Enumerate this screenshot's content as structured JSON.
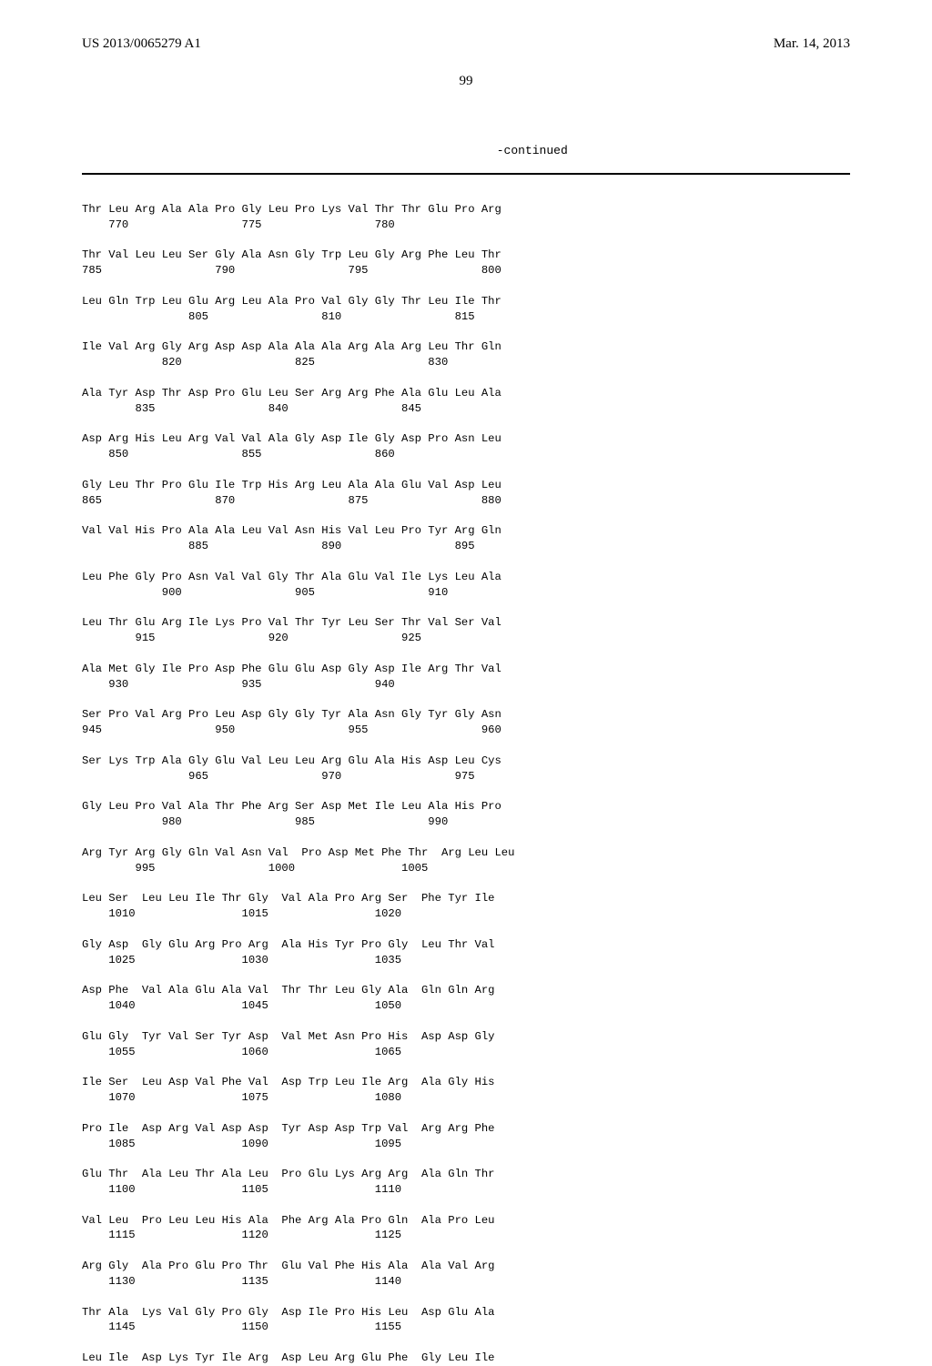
{
  "header": {
    "pub_number": "US 2013/0065279 A1",
    "pub_date": "Mar. 14, 2013"
  },
  "page_number": "99",
  "continued_label": "-continued",
  "sequence_text": "Thr Leu Arg Ala Ala Pro Gly Leu Pro Lys Val Thr Thr Glu Pro Arg\n    770                 775                 780\n\nThr Val Leu Leu Ser Gly Ala Asn Gly Trp Leu Gly Arg Phe Leu Thr\n785                 790                 795                 800\n\nLeu Gln Trp Leu Glu Arg Leu Ala Pro Val Gly Gly Thr Leu Ile Thr\n                805                 810                 815\n\nIle Val Arg Gly Arg Asp Asp Ala Ala Ala Arg Ala Arg Leu Thr Gln\n            820                 825                 830\n\nAla Tyr Asp Thr Asp Pro Glu Leu Ser Arg Arg Phe Ala Glu Leu Ala\n        835                 840                 845\n\nAsp Arg His Leu Arg Val Val Ala Gly Asp Ile Gly Asp Pro Asn Leu\n    850                 855                 860\n\nGly Leu Thr Pro Glu Ile Trp His Arg Leu Ala Ala Glu Val Asp Leu\n865                 870                 875                 880\n\nVal Val His Pro Ala Ala Leu Val Asn His Val Leu Pro Tyr Arg Gln\n                885                 890                 895\n\nLeu Phe Gly Pro Asn Val Val Gly Thr Ala Glu Val Ile Lys Leu Ala\n            900                 905                 910\n\nLeu Thr Glu Arg Ile Lys Pro Val Thr Tyr Leu Ser Thr Val Ser Val\n        915                 920                 925\n\nAla Met Gly Ile Pro Asp Phe Glu Glu Asp Gly Asp Ile Arg Thr Val\n    930                 935                 940\n\nSer Pro Val Arg Pro Leu Asp Gly Gly Tyr Ala Asn Gly Tyr Gly Asn\n945                 950                 955                 960\n\nSer Lys Trp Ala Gly Glu Val Leu Leu Arg Glu Ala His Asp Leu Cys\n                965                 970                 975\n\nGly Leu Pro Val Ala Thr Phe Arg Ser Asp Met Ile Leu Ala His Pro\n            980                 985                 990\n\nArg Tyr Arg Gly Gln Val Asn Val  Pro Asp Met Phe Thr  Arg Leu Leu\n        995                 1000                1005\n\nLeu Ser  Leu Leu Ile Thr Gly  Val Ala Pro Arg Ser  Phe Tyr Ile\n    1010                1015                1020\n\nGly Asp  Gly Glu Arg Pro Arg  Ala His Tyr Pro Gly  Leu Thr Val\n    1025                1030                1035\n\nAsp Phe  Val Ala Glu Ala Val  Thr Thr Leu Gly Ala  Gln Gln Arg\n    1040                1045                1050\n\nGlu Gly  Tyr Val Ser Tyr Asp  Val Met Asn Pro His  Asp Asp Gly\n    1055                1060                1065\n\nIle Ser  Leu Asp Val Phe Val  Asp Trp Leu Ile Arg  Ala Gly His\n    1070                1075                1080\n\nPro Ile  Asp Arg Val Asp Asp  Tyr Asp Asp Trp Val  Arg Arg Phe\n    1085                1090                1095\n\nGlu Thr  Ala Leu Thr Ala Leu  Pro Glu Lys Arg Arg  Ala Gln Thr\n    1100                1105                1110\n\nVal Leu  Pro Leu Leu His Ala  Phe Arg Ala Pro Gln  Ala Pro Leu\n    1115                1120                1125\n\nArg Gly  Ala Pro Glu Pro Thr  Glu Val Phe His Ala  Ala Val Arg\n    1130                1135                1140\n\nThr Ala  Lys Val Gly Pro Gly  Asp Ile Pro His Leu  Asp Glu Ala\n    1145                1150                1155\n\nLeu Ile  Asp Lys Tyr Ile Arg  Asp Leu Arg Glu Phe  Gly Leu Ile"
}
